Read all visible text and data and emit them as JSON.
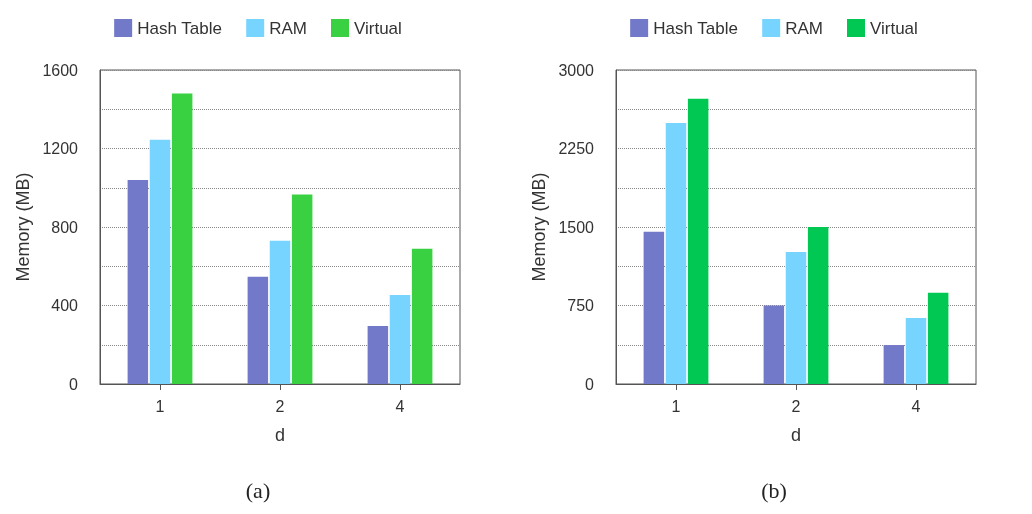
{
  "chart_data": [
    {
      "type": "bar",
      "categories": [
        "1",
        "2",
        "4"
      ],
      "xlabel": "d",
      "ylabel": "Memory (MB)",
      "annotations": [
        "(a)"
      ],
      "series": [
        {
          "name": "Hash Table",
          "color": "#7379c9",
          "values": [
            1040,
            546,
            296
          ]
        },
        {
          "name": "RAM",
          "color": "#76d4fe",
          "values": [
            1245,
            730,
            454
          ]
        },
        {
          "name": "Virtual",
          "color": "#39d142",
          "values": [
            1480,
            965,
            689
          ]
        }
      ],
      "ylim": [
        0,
        1600
      ],
      "yticks": [
        0,
        {
          "value": 200,
          "label": null
        },
        400,
        {
          "value": 600,
          "label": null
        },
        800,
        {
          "value": 1000,
          "label": null
        },
        1200,
        {
          "value": 1400,
          "label": null
        },
        1600
      ],
      "grid": "y",
      "legend": "top"
    },
    {
      "type": "bar",
      "categories": [
        "1",
        "2",
        "4"
      ],
      "xlabel": "d",
      "ylabel": "Memory (MB)",
      "annotations": [
        "(b)"
      ],
      "series": [
        {
          "name": "Hash Table",
          "color": "#7379c9",
          "values": [
            1455,
            750,
            372
          ]
        },
        {
          "name": "RAM",
          "color": "#76d4fe",
          "values": [
            2493,
            1261,
            630
          ]
        },
        {
          "name": "Virtual",
          "color": "#00c853",
          "values": [
            2725,
            1500,
            873
          ]
        }
      ],
      "ylim": [
        0,
        3000
      ],
      "yticks": [
        0,
        {
          "value": 375,
          "label": null
        },
        750,
        {
          "value": 1125,
          "label": null
        },
        1500,
        {
          "value": 1875,
          "label": null
        },
        2250,
        {
          "value": 2625,
          "label": null
        },
        3000
      ],
      "grid": "y",
      "legend": "top"
    }
  ]
}
